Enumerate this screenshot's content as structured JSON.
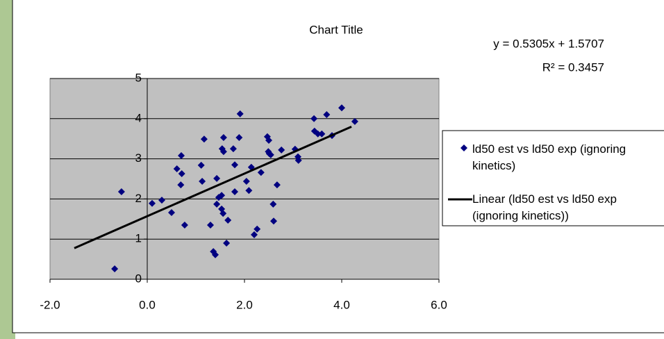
{
  "chart_data": {
    "type": "scatter",
    "title": "Chart Title",
    "series": [
      {
        "name": "ld50 est vs ld50 exp (ignoring kinetics)",
        "color": "#000080",
        "x": [
          -0.67,
          -0.53,
          0.1,
          0.3,
          0.5,
          0.61,
          0.69,
          0.7,
          0.71,
          0.77,
          1.11,
          1.13,
          1.17,
          1.3,
          1.36,
          1.4,
          1.43,
          1.43,
          1.47,
          1.53,
          1.53,
          1.56,
          1.54,
          1.57,
          1.57,
          1.63,
          1.66,
          1.77,
          1.8,
          1.8,
          1.91,
          1.89,
          2.04,
          2.09,
          2.14,
          2.2,
          2.26,
          2.34,
          2.47,
          2.49,
          2.5,
          2.51,
          2.54,
          2.59,
          2.6,
          2.67,
          2.76,
          3.04,
          3.1,
          3.11,
          3.43,
          3.44,
          3.51,
          3.59,
          3.69,
          3.8,
          4.0,
          4.27
        ],
        "values": [
          0.26,
          2.18,
          1.89,
          1.97,
          1.66,
          2.75,
          2.35,
          3.08,
          2.63,
          1.35,
          2.84,
          2.44,
          3.49,
          1.35,
          0.69,
          0.61,
          2.51,
          1.87,
          2.04,
          1.75,
          2.09,
          1.64,
          3.25,
          3.53,
          3.18,
          0.9,
          1.47,
          3.25,
          2.85,
          2.18,
          4.12,
          3.53,
          2.44,
          2.21,
          2.79,
          1.11,
          1.25,
          2.66,
          3.55,
          3.18,
          3.46,
          3.13,
          3.1,
          1.87,
          1.45,
          2.35,
          3.22,
          3.24,
          3.05,
          2.96,
          4.0,
          3.69,
          3.62,
          3.62,
          4.1,
          3.58,
          4.27,
          3.93
        ]
      }
    ],
    "trendline": {
      "name": "Linear (ld50 est vs ld50 exp (ignoring kinetics))",
      "color": "#000000",
      "x": [
        -1.5,
        4.2
      ],
      "y": [
        0.775,
        3.799
      ],
      "equation": "y = 0.5305x + 1.5707",
      "r_squared": "R² = 0.3457"
    },
    "xlim": [
      -2,
      6
    ],
    "ylim": [
      0,
      5
    ],
    "xticks": [
      {
        "value": -2,
        "label": "-2.0"
      },
      {
        "value": 0,
        "label": "0.0"
      },
      {
        "value": 2,
        "label": "2.0"
      },
      {
        "value": 4,
        "label": "4.0"
      },
      {
        "value": 6,
        "label": "6.0"
      }
    ],
    "yticks": [
      0,
      1,
      2,
      3,
      4,
      5
    ],
    "grid": true,
    "plot_background": "#c0c0c0",
    "legend": "right"
  }
}
